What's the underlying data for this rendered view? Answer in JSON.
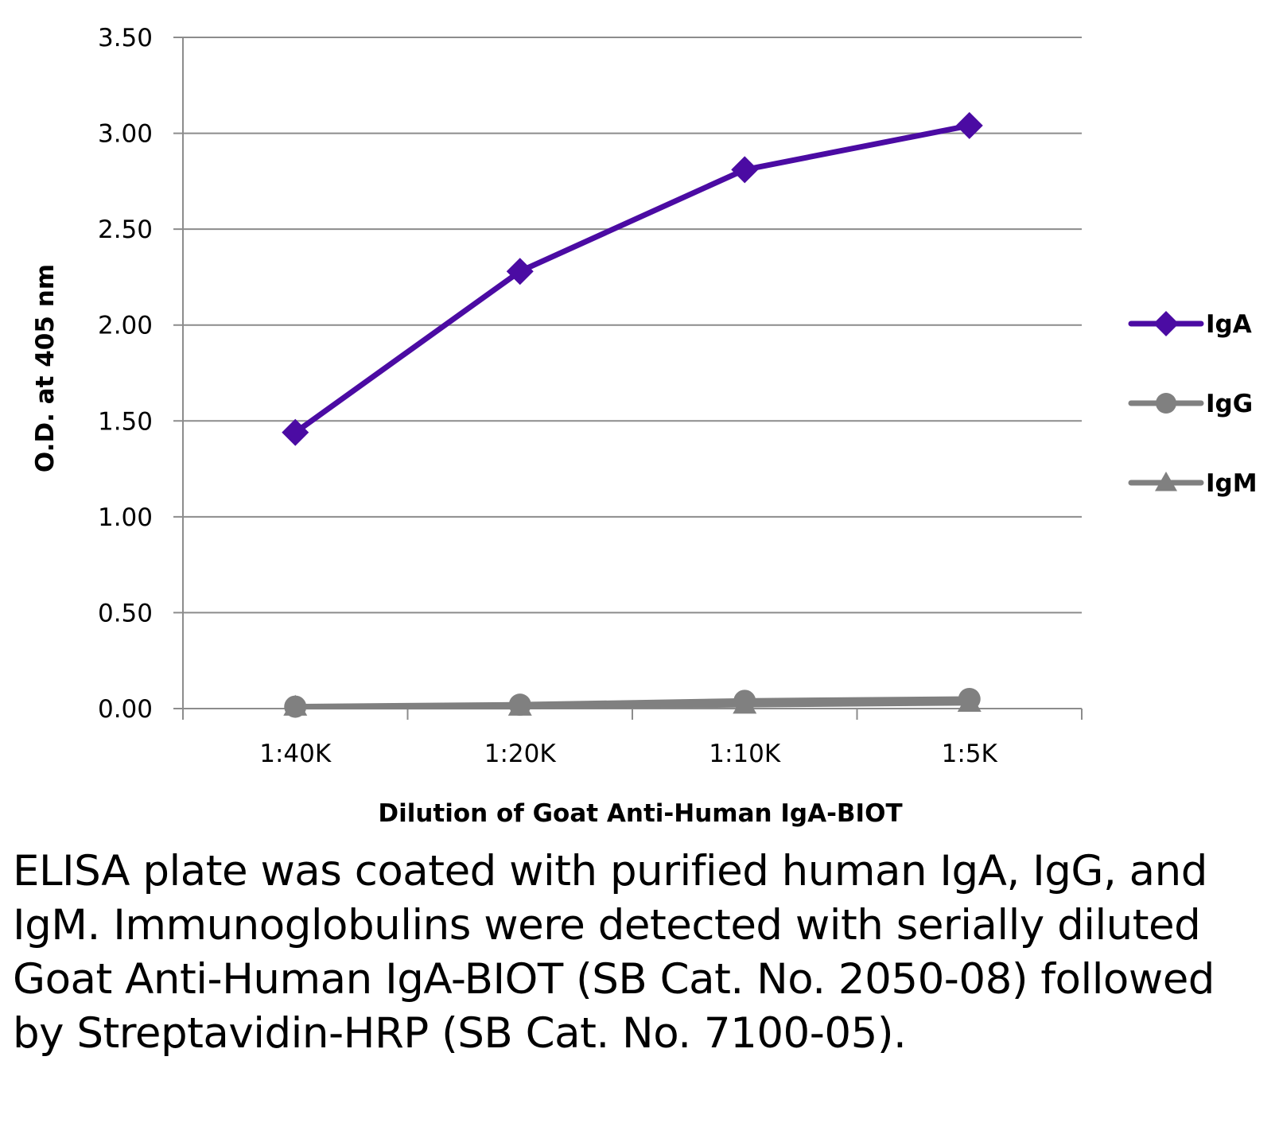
{
  "chart_data": {
    "type": "line",
    "title": "",
    "xlabel": "Dilution of Goat Anti-Human IgA-BIOT",
    "ylabel": "O.D. at 405 nm",
    "categories": [
      "1:40K",
      "1:20K",
      "1:10K",
      "1:5K"
    ],
    "ylim": [
      0,
      3.5
    ],
    "yticks": [
      "0.00",
      "0.50",
      "1.00",
      "1.50",
      "2.00",
      "2.50",
      "3.00",
      "3.50"
    ],
    "grid": true,
    "legend_position": "right",
    "series": [
      {
        "name": "IgA",
        "values": [
          1.44,
          2.28,
          2.81,
          3.04
        ],
        "color": "#4B0BA3",
        "marker": "diamond"
      },
      {
        "name": "IgG",
        "values": [
          0.01,
          0.02,
          0.04,
          0.05
        ],
        "color": "#808080",
        "marker": "circle"
      },
      {
        "name": "IgM",
        "values": [
          0.01,
          0.01,
          0.02,
          0.03
        ],
        "color": "#808080",
        "marker": "triangle"
      }
    ]
  },
  "caption": "ELISA plate was coated with purified human IgA, IgG, and IgM.  Immunoglobulins were detected with serially diluted Goat Anti-Human IgA-BIOT (SB Cat. No. 2050-08) followed by Streptavidin-HRP (SB Cat. No. 7100-05)."
}
